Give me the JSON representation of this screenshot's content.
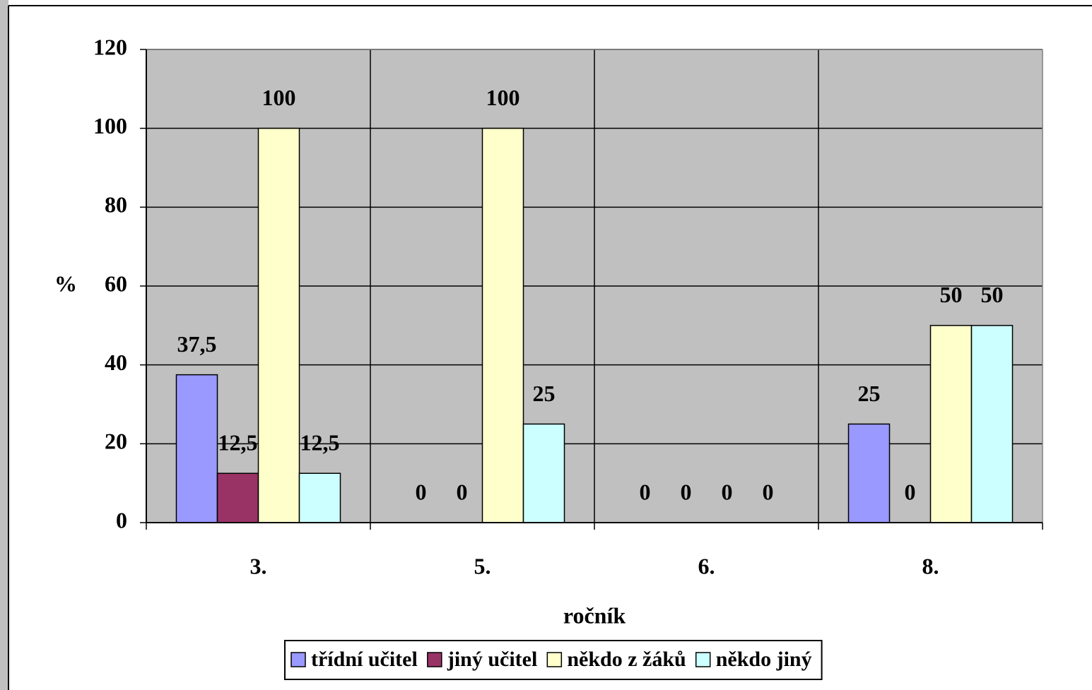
{
  "chart_data": {
    "type": "bar",
    "categories": [
      "3.",
      "5.",
      "6.",
      "8."
    ],
    "series": [
      {
        "name": "třídní učitel",
        "color": "#9999ff",
        "values": [
          37.5,
          0,
          0,
          25
        ],
        "value_labels": [
          "37,5",
          "0",
          "0",
          "25"
        ]
      },
      {
        "name": "jiný učitel",
        "color": "#993366",
        "values": [
          12.5,
          0,
          0,
          0
        ],
        "value_labels": [
          "12,5",
          "0",
          "0",
          "0"
        ]
      },
      {
        "name": "někdo z žáků",
        "color": "#ffffcc",
        "values": [
          100,
          100,
          0,
          50
        ]
      },
      {
        "name": "někdo jiný",
        "color": "#ccffff",
        "values": [
          12.5,
          25,
          0,
          50
        ],
        "value_labels": [
          "12,5",
          "25",
          "0",
          "50"
        ]
      }
    ],
    "ylabel": "%",
    "xlabel": "ročník",
    "ylim": [
      0,
      120
    ],
    "yticks": [
      0,
      20,
      40,
      60,
      80,
      100,
      120
    ],
    "grid": true,
    "legend": "bottom"
  }
}
